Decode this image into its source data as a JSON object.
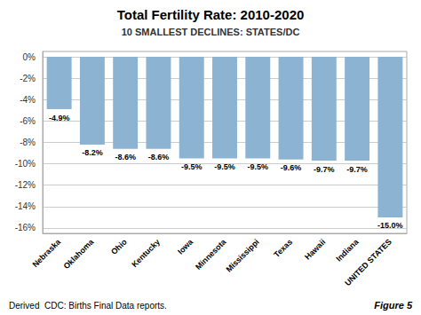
{
  "chart_data": {
    "type": "bar",
    "title": "Total Fertility Rate: 2010-2020",
    "subtitle": "10 SMALLEST DECLINES: STATES/DC",
    "categories": [
      "Nebraska",
      "Oklahoma",
      "Ohio",
      "Kentucky",
      "Iowa",
      "Minnesota",
      "Mississippi",
      "Texas",
      "Hawaii",
      "Indiana",
      "UNITED STATES"
    ],
    "values": [
      -4.9,
      -8.2,
      -8.6,
      -8.6,
      -9.5,
      -9.5,
      -9.5,
      -9.6,
      -9.7,
      -9.7,
      -15.0
    ],
    "value_labels": [
      "-4.9%",
      "-8.2%",
      "-8.6%",
      "-8.6%",
      "-9.5%",
      "-9.5%",
      "-9.5%",
      "-9.6%",
      "-9.7%",
      "-9.7%",
      "-15.0%"
    ],
    "data_labels": true,
    "color": "#8cb4d2",
    "ylim": [
      -16.5,
      0.5
    ],
    "yticks": [
      {
        "value": 0,
        "label": "0%"
      },
      {
        "value": -2,
        "label": "-2%"
      },
      {
        "value": -4,
        "label": "-4%"
      },
      {
        "value": -6,
        "label": "-6%"
      },
      {
        "value": -8,
        "label": "-8%"
      },
      {
        "value": -10,
        "label": "-10%"
      },
      {
        "value": -12,
        "label": "-12%"
      },
      {
        "value": -14,
        "label": "-14%"
      },
      {
        "value": -16,
        "label": "-16%"
      }
    ],
    "grid": true,
    "annotations": [
      "Derived  CDC: Births Final Data reports.",
      "Figure 5"
    ]
  }
}
